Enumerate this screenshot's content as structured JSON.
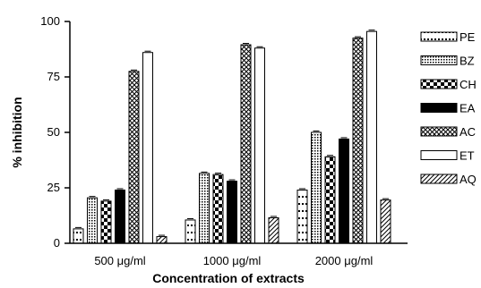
{
  "chart_data": {
    "type": "bar",
    "title": "",
    "xlabel": "Concentration of extracts",
    "ylabel": "% inhibition",
    "ylim": [
      0,
      100
    ],
    "yticks": [
      "0",
      "25",
      "50",
      "75",
      "100"
    ],
    "categories": [
      "500 μg/ml",
      "1000 μg/ml",
      "2000 μg/ml"
    ],
    "legend_position": "right",
    "grid": false,
    "series": [
      {
        "name": "PE",
        "pattern": "dots",
        "values": [
          6.5,
          10.5,
          24
        ]
      },
      {
        "name": "BZ",
        "pattern": "dense-dots",
        "values": [
          20.5,
          31.5,
          50
        ]
      },
      {
        "name": "CH",
        "pattern": "checker",
        "values": [
          19,
          31,
          39
        ]
      },
      {
        "name": "EA",
        "pattern": "solid-black",
        "values": [
          24,
          28,
          47
        ]
      },
      {
        "name": "AC",
        "pattern": "crosshatch",
        "values": [
          77.5,
          89.5,
          92.5
        ]
      },
      {
        "name": "ET",
        "pattern": "white",
        "values": [
          86,
          88,
          95.5
        ]
      },
      {
        "name": "AQ",
        "pattern": "diagonal",
        "values": [
          3,
          11.5,
          19.5
        ]
      }
    ],
    "colors": {
      "stroke": "#000000",
      "fill": "#000000",
      "background": "#ffffff"
    }
  }
}
